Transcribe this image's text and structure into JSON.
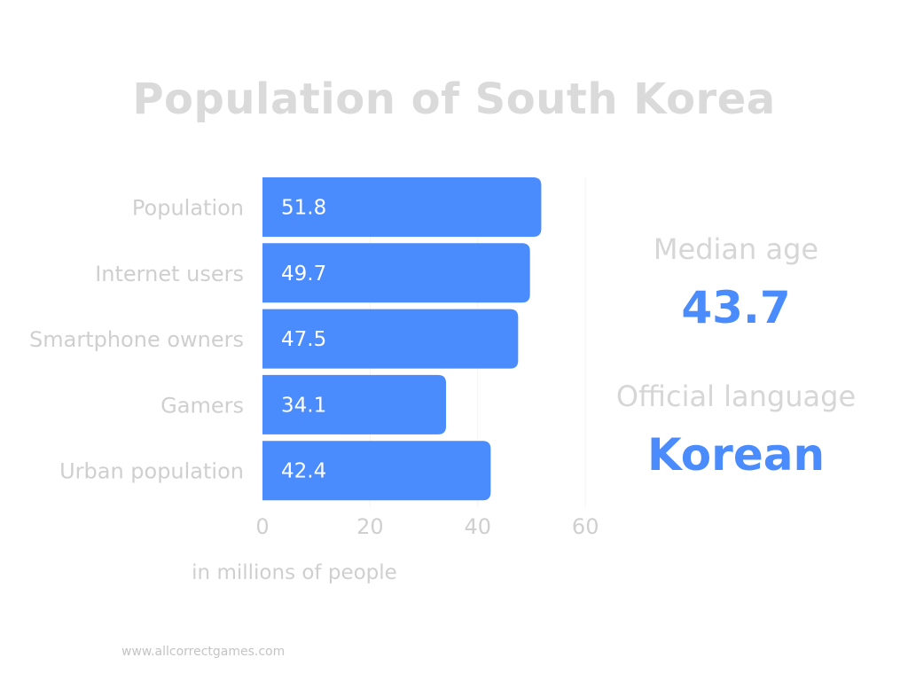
{
  "colors": {
    "bar": "#4a8bfd",
    "bar_label": "#ffffff",
    "muted_text": "#cfcfcf",
    "accent": "#4a8bfd"
  },
  "stats": {
    "median_age_label": "Median age",
    "median_age_value": "43.7",
    "official_language_label": "Official language",
    "official_language_value": "Korean"
  },
  "footer": "www.allcorrectgames.com",
  "chart_data": {
    "type": "bar",
    "orientation": "horizontal",
    "title": "Population of South Korea",
    "xlabel": "in millions of people",
    "ylabel": "",
    "categories": [
      "Population",
      "Internet users",
      "Smartphone owners",
      "Gamers",
      "Urban population"
    ],
    "values": [
      51.8,
      49.7,
      47.5,
      34.1,
      42.4
    ],
    "data_labels": [
      "51.8",
      "49.7",
      "47.5",
      "34.1",
      "42.4"
    ],
    "xlim": [
      0,
      60
    ],
    "xticks": [
      0,
      20,
      40,
      60
    ],
    "grid": true
  }
}
